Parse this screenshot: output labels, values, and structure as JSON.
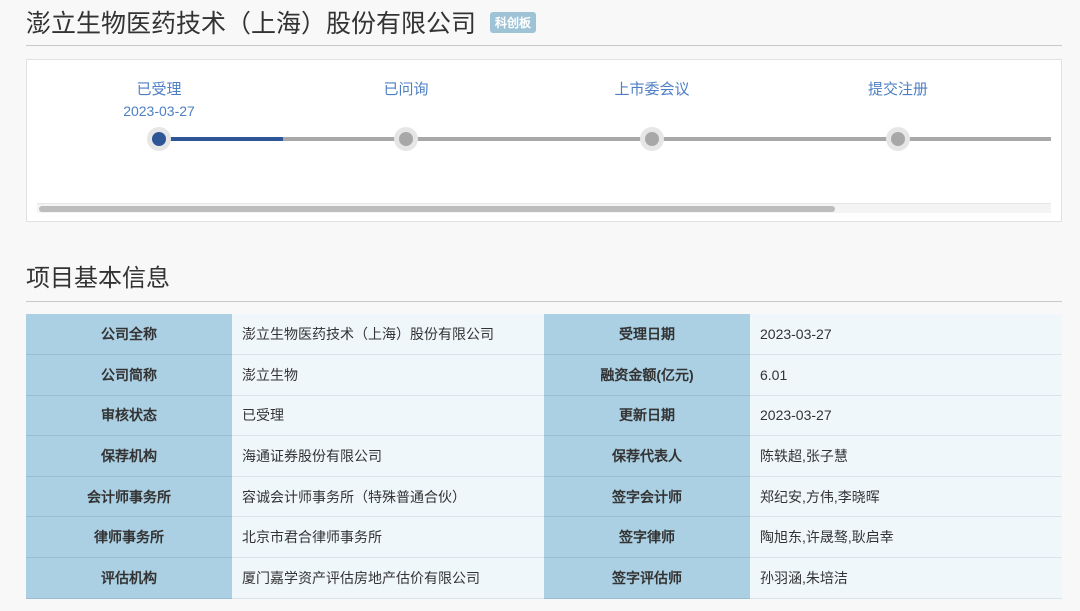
{
  "header": {
    "title": "澎立生物医药技术（上海）股份有限公司",
    "badge": "科创板"
  },
  "timeline": {
    "steps": [
      {
        "label": "已受理",
        "date": "2023-03-27",
        "done": true
      },
      {
        "label": "已问询",
        "date": ""
      },
      {
        "label": "上市委会议",
        "date": ""
      },
      {
        "label": "提交注册",
        "date": ""
      }
    ]
  },
  "section": {
    "title": "项目基本信息"
  },
  "rows": [
    {
      "k1": "公司全称",
      "v1": "澎立生物医药技术（上海）股份有限公司",
      "k2": "受理日期",
      "v2": "2023-03-27"
    },
    {
      "k1": "公司简称",
      "v1": "澎立生物",
      "k2": "融资金额(亿元)",
      "v2": "6.01"
    },
    {
      "k1": "审核状态",
      "v1": "已受理",
      "k2": "更新日期",
      "v2": "2023-03-27"
    },
    {
      "k1": "保荐机构",
      "v1": "海通证券股份有限公司",
      "k2": "保荐代表人",
      "v2": "陈轶超,张子慧"
    },
    {
      "k1": "会计师事务所",
      "v1": "容诚会计师事务所（特殊普通合伙）",
      "k2": "签字会计师",
      "v2": "郑纪安,方伟,李晓晖"
    },
    {
      "k1": "律师事务所",
      "v1": "北京市君合律师事务所",
      "k2": "签字律师",
      "v2": "陶旭东,许晟骜,耿启幸"
    },
    {
      "k1": "评估机构",
      "v1": "厦门嘉学资产评估房地产估价有限公司",
      "k2": "签字评估师",
      "v2": "孙羽涵,朱培洁"
    }
  ],
  "colors": {
    "accent": "#2e5596",
    "label_bg": "#abcfe3",
    "value_bg": "#f0f7fb",
    "step_text": "#4d7fc4"
  }
}
